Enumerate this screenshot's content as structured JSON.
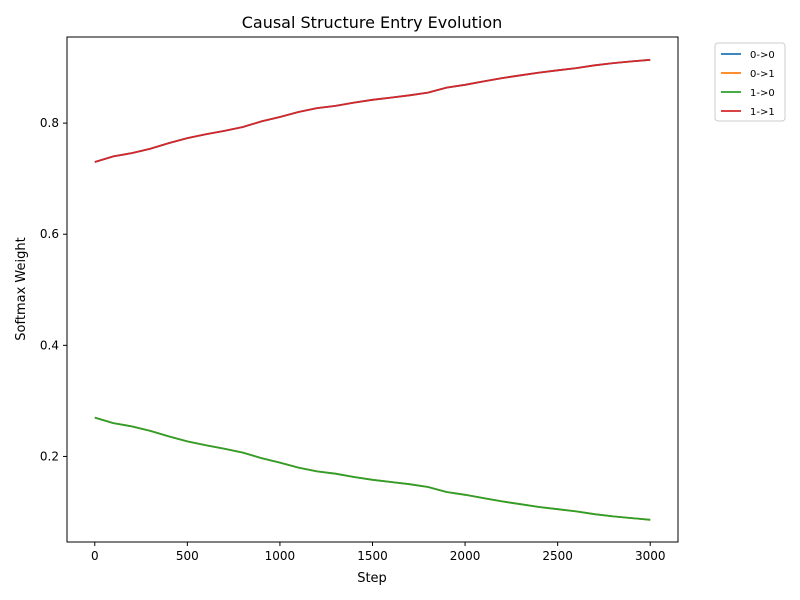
{
  "chart_data": {
    "type": "line",
    "title": "Causal Structure Entry Evolution",
    "xlabel": "Step",
    "ylabel": "Softmax Weight",
    "xlim": [
      -150,
      3150
    ],
    "ylim": [
      0.046,
      0.955
    ],
    "xticks": [
      0,
      500,
      1000,
      1500,
      2000,
      2500,
      3000
    ],
    "xtick_labels": [
      "0",
      "500",
      "1000",
      "1500",
      "2000",
      "2500",
      "3000"
    ],
    "yticks": [
      0.2,
      0.4,
      0.6,
      0.8
    ],
    "ytick_labels": [
      "0.2",
      "0.4",
      "0.6",
      "0.8"
    ],
    "grid": false,
    "legend_position": "outside-top-right",
    "x": [
      0,
      100,
      200,
      300,
      400,
      500,
      600,
      700,
      800,
      900,
      1000,
      1100,
      1200,
      1300,
      1400,
      1500,
      1600,
      1700,
      1800,
      1900,
      2000,
      2100,
      2200,
      2300,
      2400,
      2500,
      2600,
      2700,
      2800,
      2900,
      3000
    ],
    "series": [
      {
        "name": "0->0",
        "color": "#1f77b4",
        "values": [
          0.73,
          0.74,
          0.746,
          0.754,
          0.764,
          0.773,
          0.78,
          0.786,
          0.793,
          0.803,
          0.811,
          0.82,
          0.827,
          0.831,
          0.837,
          0.842,
          0.846,
          0.85,
          0.855,
          0.864,
          0.869,
          0.875,
          0.881,
          0.886,
          0.891,
          0.895,
          0.899,
          0.904,
          0.908,
          0.911,
          0.914
        ]
      },
      {
        "name": "0->1",
        "color": "#ff7f0e",
        "values": [
          0.27,
          0.26,
          0.254,
          0.246,
          0.236,
          0.227,
          0.22,
          0.214,
          0.207,
          0.197,
          0.189,
          0.18,
          0.173,
          0.169,
          0.163,
          0.158,
          0.154,
          0.15,
          0.145,
          0.136,
          0.131,
          0.125,
          0.119,
          0.114,
          0.109,
          0.105,
          0.101,
          0.096,
          0.092,
          0.089,
          0.086
        ]
      },
      {
        "name": "1->0",
        "color": "#2ca02c",
        "values": [
          0.27,
          0.26,
          0.254,
          0.246,
          0.236,
          0.227,
          0.22,
          0.214,
          0.207,
          0.197,
          0.189,
          0.18,
          0.173,
          0.169,
          0.163,
          0.158,
          0.154,
          0.15,
          0.145,
          0.136,
          0.131,
          0.125,
          0.119,
          0.114,
          0.109,
          0.105,
          0.101,
          0.096,
          0.092,
          0.089,
          0.086
        ]
      },
      {
        "name": "1->1",
        "color": "#d62728",
        "values": [
          0.73,
          0.74,
          0.746,
          0.754,
          0.764,
          0.773,
          0.78,
          0.786,
          0.793,
          0.803,
          0.811,
          0.82,
          0.827,
          0.831,
          0.837,
          0.842,
          0.846,
          0.85,
          0.855,
          0.864,
          0.869,
          0.875,
          0.881,
          0.886,
          0.891,
          0.895,
          0.899,
          0.904,
          0.908,
          0.911,
          0.914
        ]
      }
    ]
  }
}
